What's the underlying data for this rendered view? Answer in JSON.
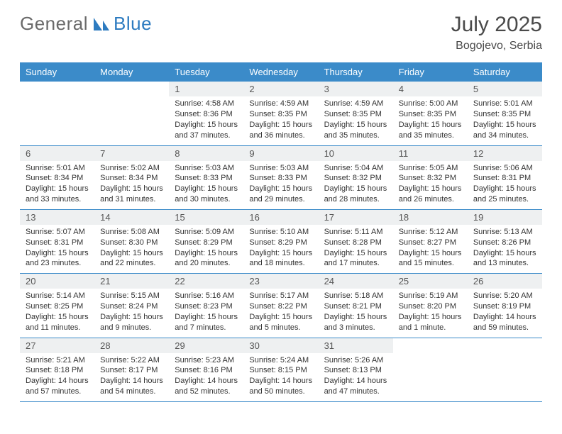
{
  "logo": {
    "word1": "General",
    "word2": "Blue"
  },
  "title": "July 2025",
  "location": "Bogojevo, Serbia",
  "colors": {
    "header_bg": "#3b8bc9",
    "header_fg": "#ffffff",
    "daynum_bg": "#eef0f1",
    "row_border": "#3b8bc9",
    "text": "#333333",
    "logo_gray": "#6a6a6a",
    "logo_blue": "#2d7bc0"
  },
  "weekdays": [
    "Sunday",
    "Monday",
    "Tuesday",
    "Wednesday",
    "Thursday",
    "Friday",
    "Saturday"
  ],
  "days": {
    "1": {
      "sunrise": "4:58 AM",
      "sunset": "8:36 PM",
      "daylight": "15 hours and 37 minutes."
    },
    "2": {
      "sunrise": "4:59 AM",
      "sunset": "8:35 PM",
      "daylight": "15 hours and 36 minutes."
    },
    "3": {
      "sunrise": "4:59 AM",
      "sunset": "8:35 PM",
      "daylight": "15 hours and 35 minutes."
    },
    "4": {
      "sunrise": "5:00 AM",
      "sunset": "8:35 PM",
      "daylight": "15 hours and 35 minutes."
    },
    "5": {
      "sunrise": "5:01 AM",
      "sunset": "8:35 PM",
      "daylight": "15 hours and 34 minutes."
    },
    "6": {
      "sunrise": "5:01 AM",
      "sunset": "8:34 PM",
      "daylight": "15 hours and 33 minutes."
    },
    "7": {
      "sunrise": "5:02 AM",
      "sunset": "8:34 PM",
      "daylight": "15 hours and 31 minutes."
    },
    "8": {
      "sunrise": "5:03 AM",
      "sunset": "8:33 PM",
      "daylight": "15 hours and 30 minutes."
    },
    "9": {
      "sunrise": "5:03 AM",
      "sunset": "8:33 PM",
      "daylight": "15 hours and 29 minutes."
    },
    "10": {
      "sunrise": "5:04 AM",
      "sunset": "8:32 PM",
      "daylight": "15 hours and 28 minutes."
    },
    "11": {
      "sunrise": "5:05 AM",
      "sunset": "8:32 PM",
      "daylight": "15 hours and 26 minutes."
    },
    "12": {
      "sunrise": "5:06 AM",
      "sunset": "8:31 PM",
      "daylight": "15 hours and 25 minutes."
    },
    "13": {
      "sunrise": "5:07 AM",
      "sunset": "8:31 PM",
      "daylight": "15 hours and 23 minutes."
    },
    "14": {
      "sunrise": "5:08 AM",
      "sunset": "8:30 PM",
      "daylight": "15 hours and 22 minutes."
    },
    "15": {
      "sunrise": "5:09 AM",
      "sunset": "8:29 PM",
      "daylight": "15 hours and 20 minutes."
    },
    "16": {
      "sunrise": "5:10 AM",
      "sunset": "8:29 PM",
      "daylight": "15 hours and 18 minutes."
    },
    "17": {
      "sunrise": "5:11 AM",
      "sunset": "8:28 PM",
      "daylight": "15 hours and 17 minutes."
    },
    "18": {
      "sunrise": "5:12 AM",
      "sunset": "8:27 PM",
      "daylight": "15 hours and 15 minutes."
    },
    "19": {
      "sunrise": "5:13 AM",
      "sunset": "8:26 PM",
      "daylight": "15 hours and 13 minutes."
    },
    "20": {
      "sunrise": "5:14 AM",
      "sunset": "8:25 PM",
      "daylight": "15 hours and 11 minutes."
    },
    "21": {
      "sunrise": "5:15 AM",
      "sunset": "8:24 PM",
      "daylight": "15 hours and 9 minutes."
    },
    "22": {
      "sunrise": "5:16 AM",
      "sunset": "8:23 PM",
      "daylight": "15 hours and 7 minutes."
    },
    "23": {
      "sunrise": "5:17 AM",
      "sunset": "8:22 PM",
      "daylight": "15 hours and 5 minutes."
    },
    "24": {
      "sunrise": "5:18 AM",
      "sunset": "8:21 PM",
      "daylight": "15 hours and 3 minutes."
    },
    "25": {
      "sunrise": "5:19 AM",
      "sunset": "8:20 PM",
      "daylight": "15 hours and 1 minute."
    },
    "26": {
      "sunrise": "5:20 AM",
      "sunset": "8:19 PM",
      "daylight": "14 hours and 59 minutes."
    },
    "27": {
      "sunrise": "5:21 AM",
      "sunset": "8:18 PM",
      "daylight": "14 hours and 57 minutes."
    },
    "28": {
      "sunrise": "5:22 AM",
      "sunset": "8:17 PM",
      "daylight": "14 hours and 54 minutes."
    },
    "29": {
      "sunrise": "5:23 AM",
      "sunset": "8:16 PM",
      "daylight": "14 hours and 52 minutes."
    },
    "30": {
      "sunrise": "5:24 AM",
      "sunset": "8:15 PM",
      "daylight": "14 hours and 50 minutes."
    },
    "31": {
      "sunrise": "5:26 AM",
      "sunset": "8:13 PM",
      "daylight": "14 hours and 47 minutes."
    }
  },
  "labels": {
    "sunrise": "Sunrise:",
    "sunset": "Sunset:",
    "daylight": "Daylight:"
  },
  "layout": {
    "first_weekday_index": 2,
    "num_days": 31
  }
}
